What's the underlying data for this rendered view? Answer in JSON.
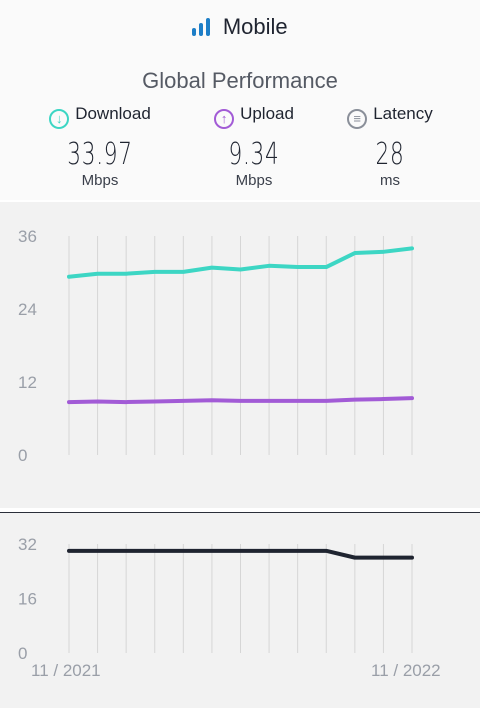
{
  "header": {
    "title": "Mobile",
    "subtitle": "Global Performance",
    "metrics": [
      {
        "label": "Download",
        "value": "33.97",
        "unit": "Mbps",
        "color": "#3dd6c4",
        "icon": "download-arrow-icon"
      },
      {
        "label": "Upload",
        "value": "9.34",
        "unit": "Mbps",
        "color": "#a25bd6",
        "icon": "upload-arrow-icon"
      },
      {
        "label": "Latency",
        "value": "28",
        "unit": "ms",
        "color": "#8a8f99",
        "icon": "latency-icon"
      }
    ]
  },
  "chart_data": [
    {
      "type": "line",
      "x": [
        "11/2021",
        "12/2021",
        "01/2022",
        "02/2022",
        "03/2022",
        "04/2022",
        "05/2022",
        "06/2022",
        "07/2022",
        "08/2022",
        "09/2022",
        "10/2022",
        "11/2022"
      ],
      "series": [
        {
          "name": "Download",
          "color": "#3dd6c4",
          "values": [
            29.3,
            29.8,
            29.8,
            30.1,
            30.1,
            30.8,
            30.5,
            31.1,
            30.9,
            30.9,
            33.2,
            33.4,
            33.97
          ]
        },
        {
          "name": "Upload",
          "color": "#a25bd6",
          "values": [
            8.7,
            8.8,
            8.7,
            8.8,
            8.9,
            9.0,
            8.9,
            8.9,
            8.9,
            8.9,
            9.1,
            9.2,
            9.34
          ]
        }
      ],
      "yticks": [
        "36",
        "24",
        "12",
        "0"
      ],
      "ylim": [
        0,
        36
      ],
      "grid": true
    },
    {
      "type": "line",
      "x": [
        "11/2021",
        "12/2021",
        "01/2022",
        "02/2022",
        "03/2022",
        "04/2022",
        "05/2022",
        "06/2022",
        "07/2022",
        "08/2022",
        "09/2022",
        "10/2022",
        "11/2022"
      ],
      "series": [
        {
          "name": "Latency",
          "color": "#1f2430",
          "values": [
            30,
            30,
            30,
            30,
            30,
            30,
            30,
            30,
            30,
            30,
            28,
            28,
            28
          ]
        }
      ],
      "yticks": [
        "32",
        "16",
        "0"
      ],
      "ylim": [
        0,
        32
      ],
      "xticks": [
        "11 / 2021",
        "11 / 2022"
      ],
      "grid": true
    }
  ]
}
